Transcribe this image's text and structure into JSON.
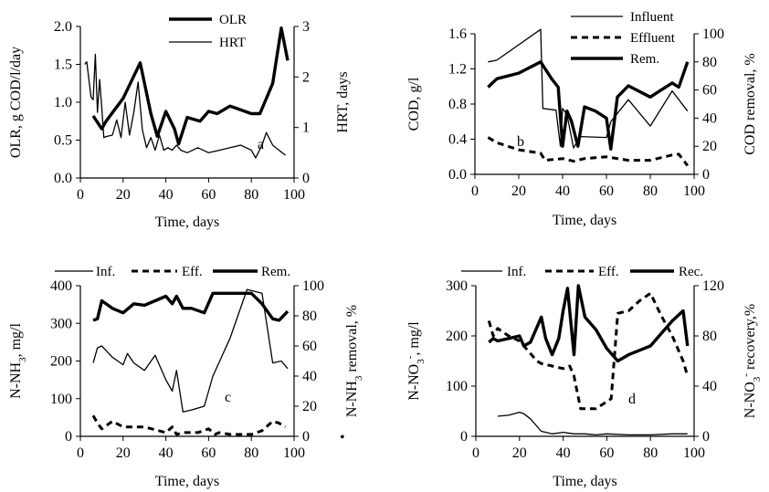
{
  "chart_data": [
    {
      "id": "a",
      "type": "line",
      "panel_label": "a",
      "xlabel": "Time, days",
      "ylabel": "OLR, g COD/l/day",
      "y2label": "HRT, days",
      "xlim": [
        0,
        100
      ],
      "xticks": [
        0,
        20,
        40,
        60,
        80,
        100
      ],
      "ylim": [
        0,
        2.0
      ],
      "yticks": [
        0.0,
        0.5,
        1.0,
        1.5,
        2.0
      ],
      "ytick_decimals": 1,
      "y2lim": [
        0,
        3
      ],
      "y2ticks": [
        0,
        1,
        2,
        3
      ],
      "y2tick_decimals": 0,
      "legend": "top-right",
      "series": [
        {
          "name": "OLR",
          "axis": "left",
          "style": "thick",
          "x": [
            6,
            10,
            12,
            20,
            28,
            33,
            36,
            40,
            44,
            46,
            50,
            56,
            60,
            64,
            70,
            80,
            84,
            90,
            94,
            97
          ],
          "y": [
            0.82,
            0.65,
            0.75,
            1.05,
            1.52,
            0.85,
            0.55,
            0.88,
            0.65,
            0.45,
            0.8,
            0.75,
            0.88,
            0.85,
            0.95,
            0.85,
            0.85,
            1.25,
            1.98,
            1.55
          ]
        },
        {
          "name": "HRT",
          "axis": "right",
          "style": "thin",
          "x": [
            2,
            3,
            5,
            6,
            7,
            8,
            9,
            10,
            11,
            12,
            15,
            17,
            19,
            21,
            23,
            25,
            27,
            29,
            31,
            33,
            35,
            37,
            39,
            41,
            43,
            45,
            47,
            50,
            55,
            60,
            65,
            70,
            75,
            80,
            82,
            85,
            87,
            90,
            93,
            96
          ],
          "y": [
            2.25,
            2.3,
            1.6,
            1.55,
            2.45,
            1.3,
            1.95,
            1.4,
            0.8,
            0.82,
            0.85,
            1.15,
            0.8,
            1.5,
            0.85,
            1.3,
            1.9,
            0.95,
            0.6,
            0.8,
            0.55,
            0.85,
            0.55,
            0.6,
            0.55,
            0.65,
            0.55,
            0.5,
            0.6,
            0.5,
            0.55,
            0.6,
            0.65,
            0.55,
            0.4,
            0.65,
            0.9,
            0.65,
            0.55,
            0.45
          ]
        }
      ]
    },
    {
      "id": "b",
      "type": "line",
      "panel_label": "b",
      "xlabel": "Time, days",
      "ylabel": "COD, g/l",
      "y2label": "COD removal, %",
      "xlim": [
        0,
        100
      ],
      "xticks": [
        0,
        20,
        40,
        60,
        80,
        100
      ],
      "ylim": [
        0,
        1.6
      ],
      "yticks": [
        0.0,
        0.4,
        0.8,
        1.2,
        1.6
      ],
      "ytick_decimals": 1,
      "y2lim": [
        0,
        100
      ],
      "y2ticks": [
        0,
        20,
        40,
        60,
        80,
        100
      ],
      "y2tick_decimals": 0,
      "legend": "top-right",
      "series": [
        {
          "name": "Influent",
          "axis": "left",
          "style": "thin",
          "x": [
            6,
            10,
            30,
            31,
            37,
            39,
            40,
            42,
            45,
            48,
            60,
            62,
            70,
            80,
            90,
            97
          ],
          "y": [
            1.28,
            1.3,
            1.65,
            0.75,
            0.73,
            0.32,
            0.75,
            0.68,
            0.3,
            0.43,
            0.42,
            0.6,
            0.85,
            0.55,
            0.95,
            0.72
          ]
        },
        {
          "name": "Effluent",
          "axis": "left",
          "style": "dashed",
          "x": [
            6,
            10,
            20,
            30,
            32,
            40,
            45,
            50,
            60,
            70,
            80,
            90,
            93,
            97
          ],
          "y": [
            0.42,
            0.36,
            0.28,
            0.24,
            0.16,
            0.18,
            0.15,
            0.18,
            0.2,
            0.16,
            0.16,
            0.22,
            0.23,
            0.1
          ]
        },
        {
          "name": "Rem.",
          "axis": "right",
          "style": "thick",
          "x": [
            6,
            10,
            20,
            30,
            35,
            38,
            40,
            42,
            44,
            47,
            50,
            55,
            60,
            62,
            65,
            70,
            80,
            85,
            90,
            93,
            97
          ],
          "y": [
            62,
            68,
            72,
            80,
            68,
            62,
            20,
            45,
            38,
            20,
            48,
            45,
            40,
            18,
            55,
            63,
            55,
            60,
            65,
            62,
            80
          ]
        }
      ]
    },
    {
      "id": "c",
      "type": "line",
      "panel_label": "c",
      "xlabel": "Time, days",
      "ylabel": "N-NH3, mg/l",
      "y2label": "N-NH3 removal, %",
      "xlim": [
        0,
        100
      ],
      "xticks": [
        0,
        20,
        40,
        60,
        80,
        100
      ],
      "ylim": [
        0,
        400
      ],
      "yticks": [
        0,
        100,
        200,
        300,
        400
      ],
      "ytick_decimals": 0,
      "y2lim": [
        0,
        100
      ],
      "y2ticks": [
        0,
        20,
        40,
        60,
        80,
        100
      ],
      "y2tick_decimals": 0,
      "legend": "top",
      "series": [
        {
          "name": "Inf.",
          "axis": "left",
          "style": "thin",
          "x": [
            6,
            8,
            10,
            15,
            20,
            22,
            25,
            30,
            35,
            40,
            43,
            45,
            48,
            52,
            58,
            62,
            70,
            78,
            85,
            90,
            94,
            97
          ],
          "y": [
            195,
            235,
            240,
            210,
            190,
            220,
            195,
            175,
            215,
            150,
            120,
            175,
            65,
            70,
            80,
            160,
            260,
            390,
            380,
            195,
            200,
            180
          ]
        },
        {
          "name": "Eff.",
          "axis": "left",
          "style": "dashed",
          "x": [
            6,
            8,
            10,
            15,
            20,
            30,
            40,
            43,
            45,
            48,
            55,
            60,
            63,
            65,
            70,
            80,
            85,
            90,
            93,
            96
          ],
          "y": [
            55,
            35,
            20,
            40,
            25,
            25,
            10,
            25,
            5,
            10,
            10,
            20,
            5,
            10,
            5,
            5,
            15,
            40,
            35,
            25
          ]
        },
        {
          "name": "Rem.",
          "axis": "right",
          "style": "thick",
          "x": [
            6,
            8,
            10,
            15,
            20,
            25,
            30,
            35,
            40,
            43,
            45,
            48,
            52,
            58,
            62,
            70,
            80,
            85,
            90,
            93,
            97
          ],
          "y": [
            77,
            78,
            90,
            85,
            82,
            88,
            87,
            90,
            93,
            88,
            93,
            85,
            85,
            82,
            95,
            95,
            95,
            88,
            78,
            77,
            83
          ]
        }
      ]
    },
    {
      "id": "d",
      "type": "line",
      "panel_label": "d",
      "xlabel": "Time, days",
      "ylabel": "N-NO3-, mg/l",
      "y2label": "N-NO3- recovery,%",
      "xlim": [
        0,
        100
      ],
      "xticks": [
        0,
        20,
        40,
        60,
        80,
        100
      ],
      "ylim": [
        0,
        300
      ],
      "yticks": [
        0,
        100,
        200,
        300
      ],
      "ytick_decimals": 0,
      "y2lim": [
        0,
        120
      ],
      "y2ticks": [
        0,
        40,
        80,
        120
      ],
      "y2tick_decimals": 0,
      "legend": "top",
      "series": [
        {
          "name": "Inf.",
          "axis": "left",
          "style": "thin",
          "x": [
            10,
            15,
            20,
            22,
            25,
            28,
            30,
            35,
            40,
            45,
            50,
            55,
            60,
            70,
            80,
            90,
            97
          ],
          "y": [
            40,
            42,
            48,
            45,
            35,
            20,
            10,
            5,
            8,
            5,
            5,
            3,
            5,
            3,
            3,
            5,
            5
          ]
        },
        {
          "name": "Eff.",
          "axis": "left",
          "style": "dashed",
          "x": [
            6,
            8,
            10,
            15,
            20,
            25,
            28,
            30,
            35,
            40,
            43,
            45,
            48,
            55,
            62,
            65,
            70,
            75,
            80,
            85,
            90,
            95,
            97
          ],
          "y": [
            230,
            200,
            215,
            200,
            190,
            165,
            150,
            145,
            140,
            135,
            140,
            120,
            55,
            55,
            75,
            245,
            250,
            270,
            285,
            240,
            200,
            150,
            120
          ]
        },
        {
          "name": "Rec.",
          "axis": "right",
          "style": "thick",
          "x": [
            6,
            8,
            10,
            15,
            20,
            22,
            25,
            30,
            32,
            35,
            38,
            40,
            42,
            45,
            47,
            50,
            55,
            60,
            65,
            70,
            80,
            90,
            95,
            97
          ],
          "y": [
            75,
            78,
            76,
            78,
            80,
            72,
            75,
            95,
            78,
            65,
            78,
            100,
            118,
            65,
            120,
            95,
            85,
            70,
            60,
            65,
            72,
            92,
            100,
            72
          ]
        }
      ]
    }
  ],
  "footer_mark": "•"
}
